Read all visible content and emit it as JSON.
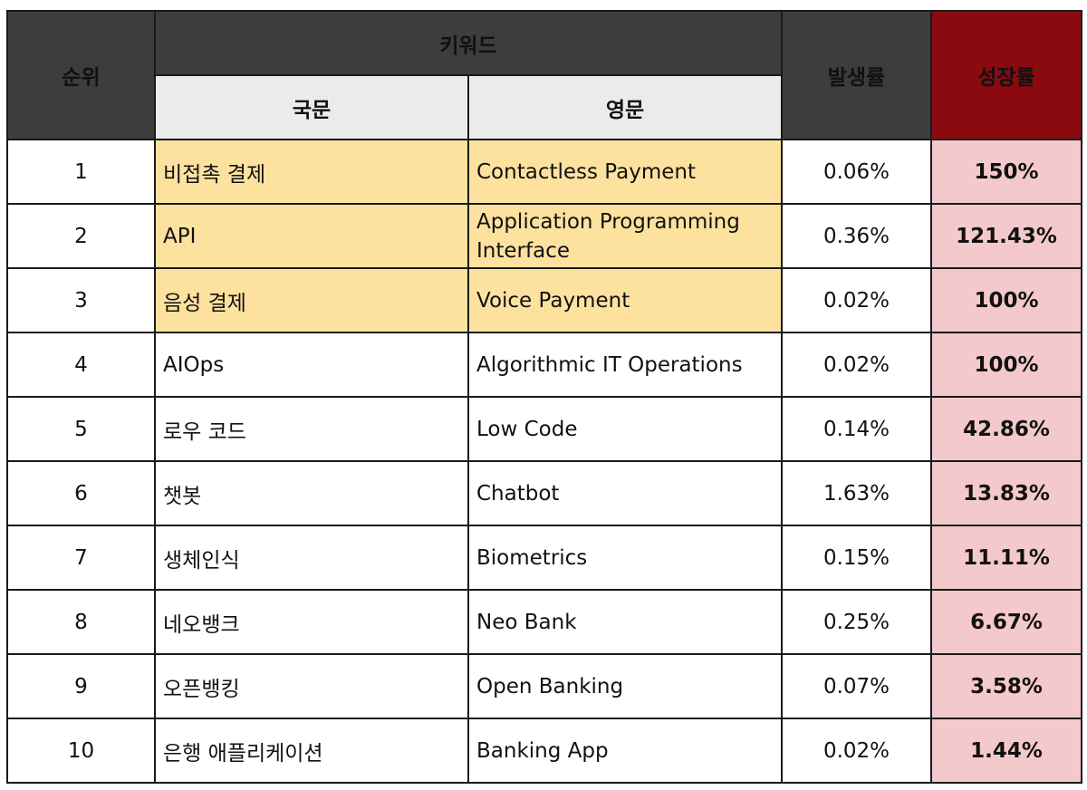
{
  "header": {
    "rank": "순위",
    "keyword": "키워드",
    "korean": "국문",
    "english": "영문",
    "rate": "발생률",
    "growth": "성장률"
  },
  "rows": [
    {
      "rank": "1",
      "korean": "비접촉 결제",
      "english": "Contactless Payment",
      "rate": "0.06%",
      "growth": "150%",
      "highlight": true
    },
    {
      "rank": "2",
      "korean": "API",
      "english": "Application Programming Interface",
      "rate": "0.36%",
      "growth": "121.43%",
      "highlight": true
    },
    {
      "rank": "3",
      "korean": "음성 결제",
      "english": "Voice Payment",
      "rate": "0.02%",
      "growth": "100%",
      "highlight": true
    },
    {
      "rank": "4",
      "korean": "AIOps",
      "english": "Algorithmic IT Operations",
      "rate": "0.02%",
      "growth": "100%",
      "highlight": false
    },
    {
      "rank": "5",
      "korean": "로우 코드",
      "english": "Low Code",
      "rate": "0.14%",
      "growth": "42.86%",
      "highlight": false
    },
    {
      "rank": "6",
      "korean": "챗봇",
      "english": "Chatbot",
      "rate": "1.63%",
      "growth": "13.83%",
      "highlight": false
    },
    {
      "rank": "7",
      "korean": "생체인식",
      "english": "Biometrics",
      "rate": "0.15%",
      "growth": "11.11%",
      "highlight": false
    },
    {
      "rank": "8",
      "korean": "네오뱅크",
      "english": "Neo Bank",
      "rate": "0.25%",
      "growth": "6.67%",
      "highlight": false
    },
    {
      "rank": "9",
      "korean": "오픈뱅킹",
      "english": "Open Banking",
      "rate": "0.07%",
      "growth": "3.58%",
      "highlight": false
    },
    {
      "rank": "10",
      "korean": "은행 애플리케이션",
      "english": "Banking App",
      "rate": "0.02%",
      "growth": "1.44%",
      "highlight": false
    }
  ],
  "colors": {
    "header_dark": "#3d3d3d",
    "header_growth": "#8b0a10",
    "subheader": "#ebebeb",
    "highlight": "#fde29f",
    "growth_cell": "#f4c9cc",
    "growth_text": "#a01620"
  }
}
